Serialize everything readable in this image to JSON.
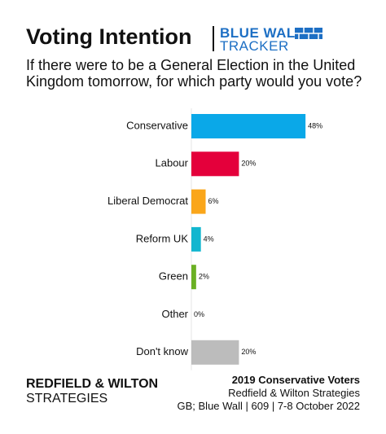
{
  "chart_data": {
    "type": "bar",
    "orientation": "horizontal",
    "title": "Voting Intention",
    "logo": [
      "BLUE WALL",
      "TRACKER"
    ],
    "subtitle": "If there were to be a General Election in the United Kingdom tomorrow, for which party would you vote?",
    "categories": [
      "Conservative",
      "Labour",
      "Liberal Democrat",
      "Reform UK",
      "Green",
      "Other",
      "Don't know"
    ],
    "values": [
      48,
      20,
      6,
      4,
      2,
      0,
      20
    ],
    "value_labels": [
      "48%",
      "20%",
      "6%",
      "4%",
      "2%",
      "0%",
      "20%"
    ],
    "colors": [
      "#0aa8e8",
      "#e4003b",
      "#faa61a",
      "#12b6cf",
      "#6ab023",
      "#999999",
      "#bcbcbc"
    ],
    "brand": [
      "REDFIELD & WILTON",
      "STRATEGIES"
    ],
    "notes": [
      "2019 Conservative Voters",
      "Redfield & Wilton Strategies",
      "GB; Blue Wall | 609 | 7-8 October 2022"
    ]
  }
}
